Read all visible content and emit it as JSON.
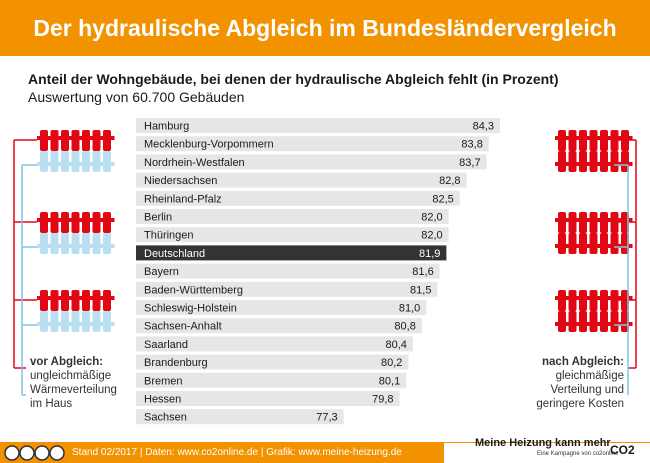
{
  "header": {
    "title": "Der hydraulische Abgleich im Bundesländervergleich"
  },
  "chart_data": {
    "type": "bar",
    "orientation": "horizontal",
    "title": "Anteil der Wohngebäude, bei denen der hydraulische Abgleich fehlt (in Prozent)",
    "subtitle": "Auswertung von 60.700 Gebäuden",
    "categories": [
      "Hamburg",
      "Mecklenburg-Vorpommern",
      "Nordrhein-Westfalen",
      "Niedersachsen",
      "Rheinland-Pfalz",
      "Berlin",
      "Thüringen",
      "Deutschland",
      "Bayern",
      "Baden-Württemberg",
      "Schleswig-Holstein",
      "Sachsen-Anhalt",
      "Saarland",
      "Brandenburg",
      "Bremen",
      "Hessen",
      "Sachsen"
    ],
    "values": [
      84.3,
      83.8,
      83.7,
      82.8,
      82.5,
      82.0,
      82.0,
      81.9,
      81.6,
      81.5,
      81.0,
      80.8,
      80.4,
      80.2,
      80.1,
      79.8,
      77.3
    ],
    "labels": [
      "84,3",
      "83,8",
      "83,7",
      "82,8",
      "82,5",
      "82,0",
      "82,0",
      "81,9",
      "81,6",
      "81,5",
      "81,0",
      "80,8",
      "80,4",
      "80,2",
      "80,1",
      "79,8",
      "77,3"
    ],
    "highlight": "Deutschland",
    "colors": {
      "bar": "#e6e6e6",
      "highlight": "#333333",
      "accent": "#f39200"
    }
  },
  "left_note": {
    "title": "vor Abgleich:",
    "lines": [
      "ungleichmäßige",
      "Wärmeverteilung",
      "im Haus"
    ]
  },
  "right_note": {
    "title": "nach Abgleich:",
    "lines": [
      "gleichmäßige",
      "Verteilung und",
      "geringere Kosten"
    ]
  },
  "footer": {
    "text": "Stand 02/2017   |   Daten: www.co2online.de   |   Grafik: www.meine-heizung.de",
    "brand": "Meine Heizung kann mehr",
    "brand_sub": "Eine Kampagne von co2online",
    "logo": "CO2"
  },
  "icons": {
    "license": "cc-icons",
    "radiator": "radiator-icon"
  }
}
